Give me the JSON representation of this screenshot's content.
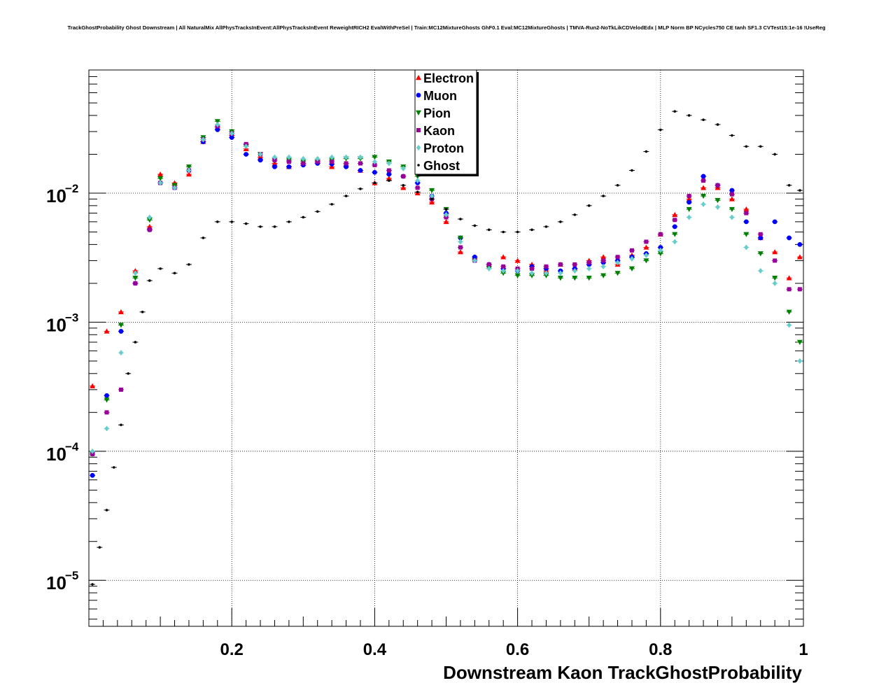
{
  "chart_data": {
    "type": "scatter",
    "title": "TrackGhostProbability Ghost Downstream | All NaturalMix AllPhysTracksInEvent:AllPhysTracksInEvent ReweightRICH2 EvalWithPreSel | Train:MC12MixtureGhosts GhF0.1 Eval:MC12MixtureGhosts | TMVA-Run2-NoTkLikCDVelodEdx | MLP Norm BP NCycles750 CE tanh SF1.3 CVTest15:1e-16 !UseReg",
    "xlabel": "Downstream Kaon TrackGhostProbability",
    "ylabel": "",
    "xlim": [
      0.0,
      1.0
    ],
    "ylim": [
      4.4e-06,
      0.09
    ],
    "log_y": true,
    "grid": true,
    "legend_position": "top-center",
    "x_ticks": [
      {
        "value": 0.2,
        "label": "0.2"
      },
      {
        "value": 0.4,
        "label": "0.4"
      },
      {
        "value": 0.6,
        "label": "0.6"
      },
      {
        "value": 0.8,
        "label": "0.8"
      },
      {
        "value": 1.0,
        "label": "1"
      }
    ],
    "y_ticks": [
      {
        "value": 1e-05,
        "label": "10",
        "exp": "−5"
      },
      {
        "value": 0.0001,
        "label": "10",
        "exp": "−4"
      },
      {
        "value": 0.001,
        "label": "10",
        "exp": "−3"
      },
      {
        "value": 0.01,
        "label": "10",
        "exp": "−2"
      }
    ],
    "series": [
      {
        "name": "Electron",
        "color": "#ff0000",
        "marker": "triangle-up",
        "x": [
          0.005,
          0.025,
          0.045,
          0.065,
          0.085,
          0.1,
          0.12,
          0.14,
          0.16,
          0.18,
          0.2,
          0.22,
          0.24,
          0.26,
          0.28,
          0.3,
          0.32,
          0.34,
          0.36,
          0.38,
          0.4,
          0.42,
          0.44,
          0.46,
          0.48,
          0.5,
          0.52,
          0.54,
          0.56,
          0.58,
          0.6,
          0.62,
          0.64,
          0.66,
          0.68,
          0.7,
          0.72,
          0.74,
          0.76,
          0.78,
          0.8,
          0.82,
          0.84,
          0.86,
          0.88,
          0.9,
          0.92,
          0.94,
          0.96,
          0.98,
          0.995
        ],
        "y": [
          0.00032,
          0.00085,
          0.0012,
          0.0025,
          0.0055,
          0.014,
          0.012,
          0.014,
          0.025,
          0.032,
          0.028,
          0.022,
          0.019,
          0.017,
          0.016,
          0.017,
          0.018,
          0.016,
          0.017,
          0.015,
          0.012,
          0.013,
          0.011,
          0.01,
          0.0085,
          0.006,
          0.0035,
          0.0032,
          0.0028,
          0.0032,
          0.003,
          0.0028,
          0.0025,
          0.0028,
          0.0026,
          0.003,
          0.0032,
          0.0028,
          0.0033,
          0.0038,
          0.0048,
          0.0068,
          0.009,
          0.011,
          0.011,
          0.009,
          0.0075,
          0.0045,
          0.0035,
          0.0022,
          0.0032
        ]
      },
      {
        "name": "Muon",
        "color": "#0000ff",
        "marker": "circle",
        "x": [
          0.005,
          0.025,
          0.045,
          0.065,
          0.085,
          0.1,
          0.12,
          0.14,
          0.16,
          0.18,
          0.2,
          0.22,
          0.24,
          0.26,
          0.28,
          0.3,
          0.32,
          0.34,
          0.36,
          0.38,
          0.4,
          0.42,
          0.44,
          0.46,
          0.48,
          0.5,
          0.52,
          0.54,
          0.56,
          0.58,
          0.6,
          0.62,
          0.64,
          0.66,
          0.68,
          0.7,
          0.72,
          0.74,
          0.76,
          0.78,
          0.8,
          0.82,
          0.84,
          0.86,
          0.88,
          0.9,
          0.92,
          0.94,
          0.96,
          0.98,
          0.995
        ],
        "y": [
          6.5e-05,
          0.00027,
          0.00085,
          0.002,
          0.0052,
          0.012,
          0.011,
          0.015,
          0.025,
          0.031,
          0.027,
          0.02,
          0.018,
          0.016,
          0.016,
          0.0165,
          0.017,
          0.0168,
          0.016,
          0.015,
          0.0145,
          0.014,
          0.0135,
          0.012,
          0.0095,
          0.007,
          0.0045,
          0.0032,
          0.0028,
          0.0026,
          0.0025,
          0.0027,
          0.0026,
          0.0025,
          0.0026,
          0.0028,
          0.0029,
          0.003,
          0.0032,
          0.0034,
          0.0038,
          0.0055,
          0.0085,
          0.0135,
          0.0115,
          0.0105,
          0.006,
          0.0045,
          0.006,
          0.0045,
          0.004
        ]
      },
      {
        "name": "Pion",
        "color": "#008000",
        "marker": "triangle-down",
        "x": [
          0.005,
          0.025,
          0.045,
          0.065,
          0.085,
          0.1,
          0.12,
          0.14,
          0.16,
          0.18,
          0.2,
          0.22,
          0.24,
          0.26,
          0.28,
          0.3,
          0.32,
          0.34,
          0.36,
          0.38,
          0.4,
          0.42,
          0.44,
          0.46,
          0.48,
          0.5,
          0.52,
          0.54,
          0.56,
          0.58,
          0.6,
          0.62,
          0.64,
          0.66,
          0.68,
          0.7,
          0.72,
          0.74,
          0.76,
          0.78,
          0.8,
          0.82,
          0.84,
          0.86,
          0.88,
          0.9,
          0.92,
          0.94,
          0.96,
          0.98,
          0.995
        ],
        "y": [
          9.5e-05,
          0.00025,
          0.00095,
          0.0022,
          0.0062,
          0.013,
          0.0115,
          0.016,
          0.027,
          0.036,
          0.03,
          0.023,
          0.02,
          0.018,
          0.018,
          0.0175,
          0.0175,
          0.018,
          0.0185,
          0.0185,
          0.019,
          0.0175,
          0.016,
          0.0135,
          0.0105,
          0.0075,
          0.0045,
          0.003,
          0.0026,
          0.0024,
          0.0023,
          0.0023,
          0.0023,
          0.0022,
          0.0022,
          0.0022,
          0.0023,
          0.0024,
          0.0026,
          0.003,
          0.0034,
          0.0048,
          0.0075,
          0.0095,
          0.0088,
          0.0075,
          0.0048,
          0.0034,
          0.0022,
          0.0012,
          0.0007
        ]
      },
      {
        "name": "Kaon",
        "color": "#990099",
        "marker": "square",
        "x": [
          0.005,
          0.025,
          0.045,
          0.065,
          0.085,
          0.1,
          0.12,
          0.14,
          0.16,
          0.18,
          0.2,
          0.22,
          0.24,
          0.26,
          0.28,
          0.3,
          0.32,
          0.34,
          0.36,
          0.38,
          0.4,
          0.42,
          0.44,
          0.46,
          0.48,
          0.5,
          0.52,
          0.54,
          0.56,
          0.58,
          0.6,
          0.62,
          0.64,
          0.66,
          0.68,
          0.7,
          0.72,
          0.74,
          0.76,
          0.78,
          0.8,
          0.82,
          0.84,
          0.86,
          0.88,
          0.9,
          0.92,
          0.94,
          0.96,
          0.98,
          0.995
        ],
        "y": [
          9.5e-05,
          0.0002,
          0.0003,
          0.002,
          0.0052,
          0.012,
          0.011,
          0.015,
          0.026,
          0.033,
          0.029,
          0.024,
          0.02,
          0.018,
          0.0175,
          0.017,
          0.0175,
          0.0175,
          0.017,
          0.017,
          0.0165,
          0.015,
          0.0135,
          0.011,
          0.009,
          0.0065,
          0.0038,
          0.003,
          0.0028,
          0.0027,
          0.0026,
          0.0026,
          0.0027,
          0.0028,
          0.0028,
          0.0029,
          0.003,
          0.0032,
          0.0036,
          0.0042,
          0.0048,
          0.0062,
          0.0095,
          0.0125,
          0.0115,
          0.0098,
          0.007,
          0.0048,
          0.003,
          0.0018,
          0.0018
        ]
      },
      {
        "name": "Proton",
        "color": "#66cccc",
        "marker": "diamond",
        "x": [
          0.005,
          0.025,
          0.045,
          0.065,
          0.085,
          0.1,
          0.12,
          0.14,
          0.16,
          0.18,
          0.2,
          0.22,
          0.24,
          0.26,
          0.28,
          0.3,
          0.32,
          0.34,
          0.36,
          0.38,
          0.4,
          0.42,
          0.44,
          0.46,
          0.48,
          0.5,
          0.52,
          0.54,
          0.56,
          0.58,
          0.6,
          0.62,
          0.64,
          0.66,
          0.68,
          0.7,
          0.72,
          0.74,
          0.76,
          0.78,
          0.8,
          0.82,
          0.84,
          0.86,
          0.88,
          0.9,
          0.92,
          0.94,
          0.96,
          0.98,
          0.995
        ],
        "y": [
          0.0001,
          0.00015,
          0.00058,
          0.0024,
          0.0065,
          0.012,
          0.011,
          0.015,
          0.026,
          0.034,
          0.029,
          0.023,
          0.02,
          0.019,
          0.019,
          0.0185,
          0.0185,
          0.019,
          0.019,
          0.019,
          0.0175,
          0.017,
          0.0155,
          0.0125,
          0.0095,
          0.0068,
          0.0042,
          0.003,
          0.0026,
          0.0025,
          0.0025,
          0.0024,
          0.0024,
          0.0024,
          0.0025,
          0.0026,
          0.0027,
          0.0029,
          0.0031,
          0.0033,
          0.0036,
          0.0042,
          0.0065,
          0.0082,
          0.0078,
          0.0065,
          0.0038,
          0.0025,
          0.002,
          0.00095,
          0.0005
        ]
      },
      {
        "name": "Ghost",
        "color": "#000000",
        "marker": "dot",
        "x": [
          0.005,
          0.015,
          0.025,
          0.035,
          0.045,
          0.055,
          0.065,
          0.075,
          0.085,
          0.1,
          0.12,
          0.14,
          0.16,
          0.18,
          0.2,
          0.22,
          0.24,
          0.26,
          0.28,
          0.3,
          0.32,
          0.34,
          0.36,
          0.38,
          0.4,
          0.42,
          0.44,
          0.46,
          0.48,
          0.5,
          0.52,
          0.54,
          0.56,
          0.58,
          0.6,
          0.62,
          0.64,
          0.66,
          0.68,
          0.7,
          0.72,
          0.74,
          0.76,
          0.78,
          0.8,
          0.82,
          0.84,
          0.86,
          0.88,
          0.9,
          0.92,
          0.94,
          0.96,
          0.98,
          0.995
        ],
        "y": [
          9.3e-06,
          1.8e-05,
          3.5e-05,
          7.5e-05,
          0.00016,
          0.0004,
          0.0007,
          0.0012,
          0.0021,
          0.0026,
          0.0024,
          0.0028,
          0.0045,
          0.006,
          0.006,
          0.0058,
          0.0055,
          0.0055,
          0.006,
          0.0065,
          0.0072,
          0.0082,
          0.0095,
          0.0108,
          0.012,
          0.0125,
          0.0115,
          0.0102,
          0.009,
          0.0075,
          0.0063,
          0.0056,
          0.0052,
          0.005,
          0.005,
          0.0052,
          0.0055,
          0.006,
          0.0068,
          0.008,
          0.0095,
          0.0115,
          0.015,
          0.021,
          0.031,
          0.043,
          0.04,
          0.037,
          0.034,
          0.028,
          0.023,
          0.023,
          0.02,
          0.0115,
          0.0105
        ]
      }
    ]
  }
}
